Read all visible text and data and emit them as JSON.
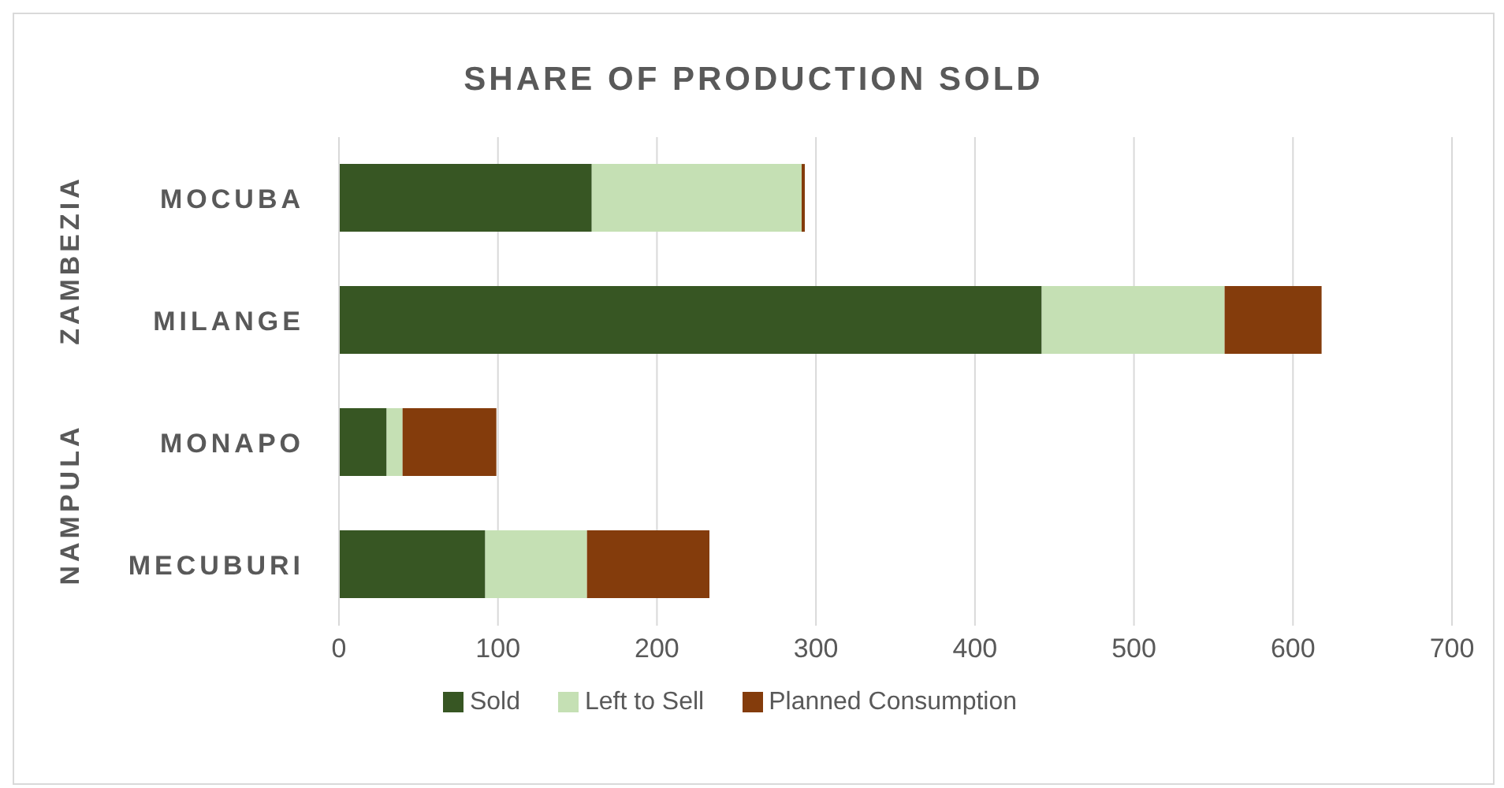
{
  "chart_data": {
    "type": "bar",
    "orientation": "horizontal",
    "stacked": true,
    "title": "SHARE OF PRODUCTION SOLD",
    "categories": [
      "MOCUBA",
      "MILANGE",
      "MONAPO",
      "MECUBURI"
    ],
    "series": [
      {
        "name": "Sold",
        "color": "#375623",
        "values": [
          159,
          442,
          30,
          92
        ]
      },
      {
        "name": "Left to Sell",
        "color": "#c5e0b4",
        "values": [
          132,
          115,
          10,
          64
        ]
      },
      {
        "name": "Planned Consumption",
        "color": "#843c0c",
        "values": [
          2,
          61,
          59,
          77
        ]
      }
    ],
    "xlim": [
      0,
      700
    ],
    "xticks": [
      0,
      100,
      200,
      300,
      400,
      500,
      600,
      700
    ],
    "annotations": [
      "ZAMBEZIA",
      "NAMPULA"
    ],
    "grid": "x",
    "legend": "bottom"
  }
}
